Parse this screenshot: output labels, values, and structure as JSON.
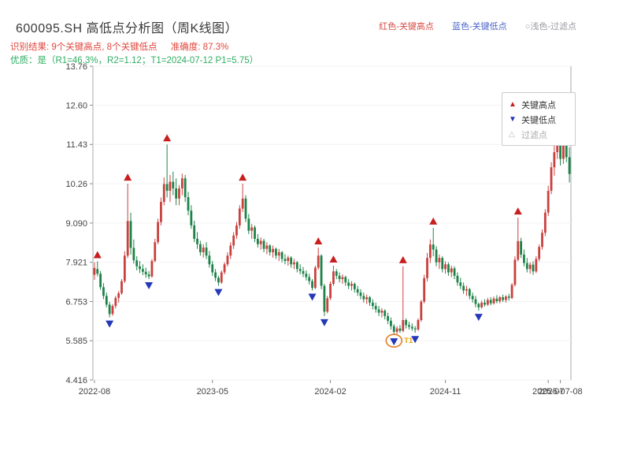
{
  "header": {
    "title": "600095.SH 高低点分析图（周K线图）",
    "top_legend": [
      {
        "label": "红色-关键高点",
        "color": "#d84a42"
      },
      {
        "label": "蓝色-关键低点",
        "color": "#4a64c8"
      },
      {
        "label": "○浅色-过滤点",
        "color": "#9a9aa2"
      }
    ],
    "result_line": "识别结果: 9个关键高点, 8个关键低点",
    "accuracy_line": "准确度: 87.3%",
    "result_color": "#e0463c",
    "quality_line": "优质：是（R1=46.3%，R2=1.12；T1=2024-07-12 P1=5.75）",
    "quality_color": "#2fae62"
  },
  "legend_box": {
    "items": [
      {
        "glyph": "▲",
        "color": "#c81e1e",
        "label": "关键高点"
      },
      {
        "glyph": "▼",
        "color": "#2438b8",
        "label": "关键低点"
      },
      {
        "glyph": "△",
        "color": "#bbbbbb",
        "label": "过滤点"
      }
    ]
  },
  "chart_data": {
    "type": "candlestick",
    "title": "600095.SH 高低点分析图（周K线图）",
    "ylim": [
      4.416,
      13.76
    ],
    "y_ticks": [
      {
        "value": 13.76,
        "label": "13.76"
      },
      {
        "value": 12.6,
        "label": "12.60"
      },
      {
        "value": 11.43,
        "label": "11.43"
      },
      {
        "value": 10.26,
        "label": "10.26"
      },
      {
        "value": 9.09,
        "label": "9.090"
      },
      {
        "value": 7.921,
        "label": "7.921"
      },
      {
        "value": 6.753,
        "label": "6.753"
      },
      {
        "value": 5.585,
        "label": "5.585"
      },
      {
        "value": 4.416,
        "label": "4.416"
      }
    ],
    "x_ticks": [
      {
        "week": 0,
        "label": "2022-08"
      },
      {
        "week": 39,
        "label": "2023-05"
      },
      {
        "week": 78,
        "label": "2024-02"
      },
      {
        "week": 116,
        "label": "2024-11"
      },
      {
        "week": 150,
        "label": "2025-07"
      },
      {
        "week": 154,
        "label": "2025-07-08"
      }
    ],
    "up_color": "#c9413e",
    "down_color": "#1d8348",
    "high_marker_color": "#c81e1e",
    "low_marker_color": "#2438b8",
    "highlight_color": "#e67e22",
    "ohlc": [
      [
        7.55,
        7.92,
        7.4,
        7.75
      ],
      [
        7.72,
        7.95,
        7.5,
        7.58
      ],
      [
        7.58,
        7.66,
        7.1,
        7.18
      ],
      [
        7.18,
        7.3,
        6.82,
        6.92
      ],
      [
        6.92,
        7.02,
        6.58,
        6.66
      ],
      [
        6.66,
        6.74,
        6.28,
        6.38
      ],
      [
        6.38,
        6.68,
        6.33,
        6.62
      ],
      [
        6.62,
        6.92,
        6.55,
        6.86
      ],
      [
        6.86,
        7.06,
        6.72,
        7.0
      ],
      [
        7.0,
        7.42,
        6.95,
        7.36
      ],
      [
        7.36,
        8.25,
        7.3,
        8.12
      ],
      [
        8.12,
        10.26,
        8.05,
        9.15
      ],
      [
        9.15,
        9.4,
        8.15,
        8.35
      ],
      [
        8.35,
        8.6,
        7.88,
        7.98
      ],
      [
        7.98,
        8.1,
        7.68,
        7.8
      ],
      [
        7.8,
        7.96,
        7.6,
        7.72
      ],
      [
        7.72,
        7.86,
        7.54,
        7.64
      ],
      [
        7.64,
        7.76,
        7.46,
        7.56
      ],
      [
        7.56,
        7.66,
        7.42,
        7.5
      ],
      [
        7.5,
        8.02,
        7.46,
        7.96
      ],
      [
        7.96,
        8.62,
        7.92,
        8.52
      ],
      [
        8.52,
        9.22,
        8.46,
        9.12
      ],
      [
        9.12,
        9.85,
        9.02,
        9.72
      ],
      [
        9.72,
        10.45,
        9.62,
        10.25
      ],
      [
        10.25,
        11.43,
        9.85,
        10.05
      ],
      [
        10.05,
        10.52,
        9.72,
        10.32
      ],
      [
        10.32,
        10.62,
        9.92,
        10.12
      ],
      [
        10.12,
        10.42,
        9.62,
        9.82
      ],
      [
        9.82,
        10.22,
        9.62,
        10.12
      ],
      [
        10.12,
        10.56,
        9.92,
        10.42
      ],
      [
        10.42,
        10.52,
        9.72,
        9.86
      ],
      [
        9.86,
        10.02,
        9.32,
        9.46
      ],
      [
        9.46,
        9.62,
        8.92,
        9.02
      ],
      [
        9.02,
        9.16,
        8.52,
        8.62
      ],
      [
        8.62,
        8.82,
        8.32,
        8.46
      ],
      [
        8.46,
        8.56,
        8.12,
        8.22
      ],
      [
        8.22,
        8.46,
        8.06,
        8.36
      ],
      [
        8.36,
        8.52,
        8.02,
        8.12
      ],
      [
        8.12,
        8.26,
        7.76,
        7.86
      ],
      [
        7.86,
        7.96,
        7.52,
        7.62
      ],
      [
        7.62,
        7.72,
        7.36,
        7.46
      ],
      [
        7.46,
        7.52,
        7.22,
        7.32
      ],
      [
        7.32,
        7.68,
        7.28,
        7.62
      ],
      [
        7.62,
        7.92,
        7.56,
        7.86
      ],
      [
        7.86,
        8.22,
        7.8,
        8.12
      ],
      [
        8.12,
        8.52,
        8.02,
        8.42
      ],
      [
        8.42,
        8.82,
        8.32,
        8.72
      ],
      [
        8.72,
        9.12,
        8.62,
        9.02
      ],
      [
        9.02,
        9.62,
        8.92,
        9.52
      ],
      [
        9.52,
        10.26,
        9.42,
        9.82
      ],
      [
        9.82,
        9.92,
        9.12,
        9.22
      ],
      [
        9.22,
        9.36,
        8.76,
        8.86
      ],
      [
        8.86,
        9.06,
        8.62,
        8.96
      ],
      [
        8.96,
        9.02,
        8.52,
        8.62
      ],
      [
        8.62,
        8.76,
        8.36,
        8.46
      ],
      [
        8.46,
        8.66,
        8.3,
        8.56
      ],
      [
        8.56,
        8.62,
        8.22,
        8.32
      ],
      [
        8.32,
        8.52,
        8.16,
        8.42
      ],
      [
        8.42,
        8.46,
        8.12,
        8.22
      ],
      [
        8.22,
        8.42,
        8.06,
        8.32
      ],
      [
        8.32,
        8.36,
        8.02,
        8.12
      ],
      [
        8.12,
        8.32,
        7.96,
        8.22
      ],
      [
        8.22,
        8.26,
        7.92,
        8.02
      ],
      [
        8.02,
        8.16,
        7.86,
        7.96
      ],
      [
        7.96,
        8.12,
        7.82,
        8.06
      ],
      [
        8.06,
        8.1,
        7.76,
        7.86
      ],
      [
        7.86,
        8.02,
        7.72,
        7.92
      ],
      [
        7.92,
        7.96,
        7.62,
        7.72
      ],
      [
        7.72,
        7.86,
        7.56,
        7.66
      ],
      [
        7.66,
        7.78,
        7.48,
        7.58
      ],
      [
        7.58,
        7.68,
        7.38,
        7.48
      ],
      [
        7.48,
        7.58,
        7.26,
        7.36
      ],
      [
        7.36,
        7.42,
        7.08,
        7.16
      ],
      [
        7.16,
        7.82,
        7.12,
        7.76
      ],
      [
        7.76,
        8.36,
        7.7,
        8.12
      ],
      [
        8.12,
        8.16,
        7.12,
        7.22
      ],
      [
        7.22,
        7.28,
        6.32,
        6.45
      ],
      [
        6.45,
        6.92,
        6.4,
        6.85
      ],
      [
        6.85,
        7.35,
        6.8,
        7.28
      ],
      [
        7.28,
        7.82,
        7.22,
        7.65
      ],
      [
        7.65,
        7.72,
        7.42,
        7.52
      ],
      [
        7.52,
        7.62,
        7.32,
        7.42
      ],
      [
        7.42,
        7.56,
        7.28,
        7.48
      ],
      [
        7.48,
        7.52,
        7.22,
        7.32
      ],
      [
        7.32,
        7.42,
        7.12,
        7.22
      ],
      [
        7.22,
        7.36,
        7.08,
        7.28
      ],
      [
        7.28,
        7.32,
        7.02,
        7.12
      ],
      [
        7.12,
        7.22,
        6.92,
        7.02
      ],
      [
        7.02,
        7.12,
        6.82,
        6.92
      ],
      [
        6.92,
        7.02,
        6.72,
        6.82
      ],
      [
        6.82,
        6.96,
        6.68,
        6.88
      ],
      [
        6.88,
        6.92,
        6.62,
        6.72
      ],
      [
        6.72,
        6.82,
        6.52,
        6.62
      ],
      [
        6.62,
        6.72,
        6.42,
        6.52
      ],
      [
        6.52,
        6.62,
        6.32,
        6.42
      ],
      [
        6.42,
        6.56,
        6.28,
        6.48
      ],
      [
        6.48,
        6.52,
        6.22,
        6.32
      ],
      [
        6.32,
        6.42,
        6.08,
        6.18
      ],
      [
        6.18,
        6.28,
        5.92,
        6.02
      ],
      [
        6.02,
        6.08,
        5.75,
        5.85
      ],
      [
        5.85,
        6.02,
        5.78,
        5.95
      ],
      [
        5.95,
        6.05,
        5.82,
        5.88
      ],
      [
        5.88,
        7.8,
        5.84,
        6.2
      ],
      [
        6.2,
        6.25,
        5.95,
        6.05
      ],
      [
        6.05,
        6.15,
        5.92,
        6.0
      ],
      [
        6.0,
        6.1,
        5.88,
        5.95
      ],
      [
        5.95,
        6.02,
        5.82,
        5.92
      ],
      [
        5.92,
        6.25,
        5.88,
        6.2
      ],
      [
        6.2,
        6.8,
        6.15,
        6.75
      ],
      [
        6.75,
        7.55,
        6.7,
        7.45
      ],
      [
        7.45,
        8.2,
        7.35,
        8.05
      ],
      [
        8.05,
        8.6,
        7.9,
        8.45
      ],
      [
        8.45,
        8.95,
        8.1,
        8.3
      ],
      [
        8.3,
        8.4,
        7.8,
        7.92
      ],
      [
        7.92,
        8.15,
        7.72,
        8.05
      ],
      [
        8.05,
        8.1,
        7.62,
        7.72
      ],
      [
        7.72,
        7.95,
        7.58,
        7.86
      ],
      [
        7.86,
        7.92,
        7.52,
        7.62
      ],
      [
        7.62,
        7.82,
        7.48,
        7.74
      ],
      [
        7.74,
        7.8,
        7.42,
        7.52
      ],
      [
        7.52,
        7.62,
        7.22,
        7.32
      ],
      [
        7.32,
        7.46,
        7.12,
        7.22
      ],
      [
        7.22,
        7.32,
        6.98,
        7.08
      ],
      [
        7.08,
        7.22,
        6.92,
        7.12
      ],
      [
        7.12,
        7.16,
        6.82,
        6.92
      ],
      [
        6.92,
        7.02,
        6.72,
        6.82
      ],
      [
        6.82,
        6.92,
        6.58,
        6.68
      ],
      [
        6.68,
        6.72,
        6.48,
        6.58
      ],
      [
        6.58,
        6.78,
        6.54,
        6.72
      ],
      [
        6.72,
        6.82,
        6.6,
        6.66
      ],
      [
        6.66,
        6.86,
        6.62,
        6.8
      ],
      [
        6.8,
        6.88,
        6.64,
        6.7
      ],
      [
        6.7,
        6.9,
        6.66,
        6.84
      ],
      [
        6.84,
        6.94,
        6.7,
        6.76
      ],
      [
        6.76,
        6.92,
        6.7,
        6.88
      ],
      [
        6.88,
        6.96,
        6.74,
        6.8
      ],
      [
        6.8,
        6.94,
        6.72,
        6.9
      ],
      [
        6.9,
        6.98,
        6.78,
        6.86
      ],
      [
        6.86,
        7.3,
        6.82,
        7.25
      ],
      [
        7.25,
        8.1,
        7.2,
        8.0
      ],
      [
        8.0,
        9.25,
        7.95,
        8.55
      ],
      [
        8.55,
        8.65,
        8.05,
        8.15
      ],
      [
        8.15,
        8.3,
        7.8,
        7.9
      ],
      [
        7.9,
        8.05,
        7.62,
        7.72
      ],
      [
        7.72,
        7.92,
        7.58,
        7.85
      ],
      [
        7.85,
        7.95,
        7.55,
        7.65
      ],
      [
        7.65,
        8.1,
        7.6,
        8.02
      ],
      [
        8.02,
        8.45,
        7.95,
        8.38
      ],
      [
        8.38,
        8.9,
        8.3,
        8.8
      ],
      [
        8.8,
        9.5,
        8.7,
        9.4
      ],
      [
        9.4,
        10.2,
        9.3,
        10.05
      ],
      [
        10.05,
        10.9,
        9.95,
        10.75
      ],
      [
        10.75,
        11.4,
        10.5,
        11.2
      ],
      [
        11.2,
        12.55,
        11.0,
        11.6
      ],
      [
        11.6,
        11.9,
        10.8,
        11.0
      ],
      [
        11.0,
        11.75,
        10.85,
        11.6
      ],
      [
        11.6,
        11.7,
        10.9,
        11.05
      ],
      [
        11.05,
        11.35,
        10.3,
        10.55
      ]
    ],
    "key_highs": [
      {
        "week": 1,
        "price": 7.95
      },
      {
        "week": 11,
        "price": 10.26
      },
      {
        "week": 24,
        "price": 11.43
      },
      {
        "week": 49,
        "price": 10.26
      },
      {
        "week": 74,
        "price": 8.36
      },
      {
        "week": 79,
        "price": 7.82
      },
      {
        "week": 102,
        "price": 7.8
      },
      {
        "week": 112,
        "price": 8.95
      },
      {
        "week": 140,
        "price": 9.25
      }
    ],
    "key_lows": [
      {
        "week": 5,
        "price": 6.28
      },
      {
        "week": 18,
        "price": 7.42
      },
      {
        "week": 41,
        "price": 7.22
      },
      {
        "week": 72,
        "price": 7.08
      },
      {
        "week": 76,
        "price": 6.32
      },
      {
        "week": 99,
        "price": 5.75
      },
      {
        "week": 106,
        "price": 5.82
      },
      {
        "week": 127,
        "price": 6.48
      }
    ],
    "filtered_point": {
      "week": 99,
      "price": 5.75,
      "label": "T1",
      "label_color": "#e5a50a"
    }
  }
}
